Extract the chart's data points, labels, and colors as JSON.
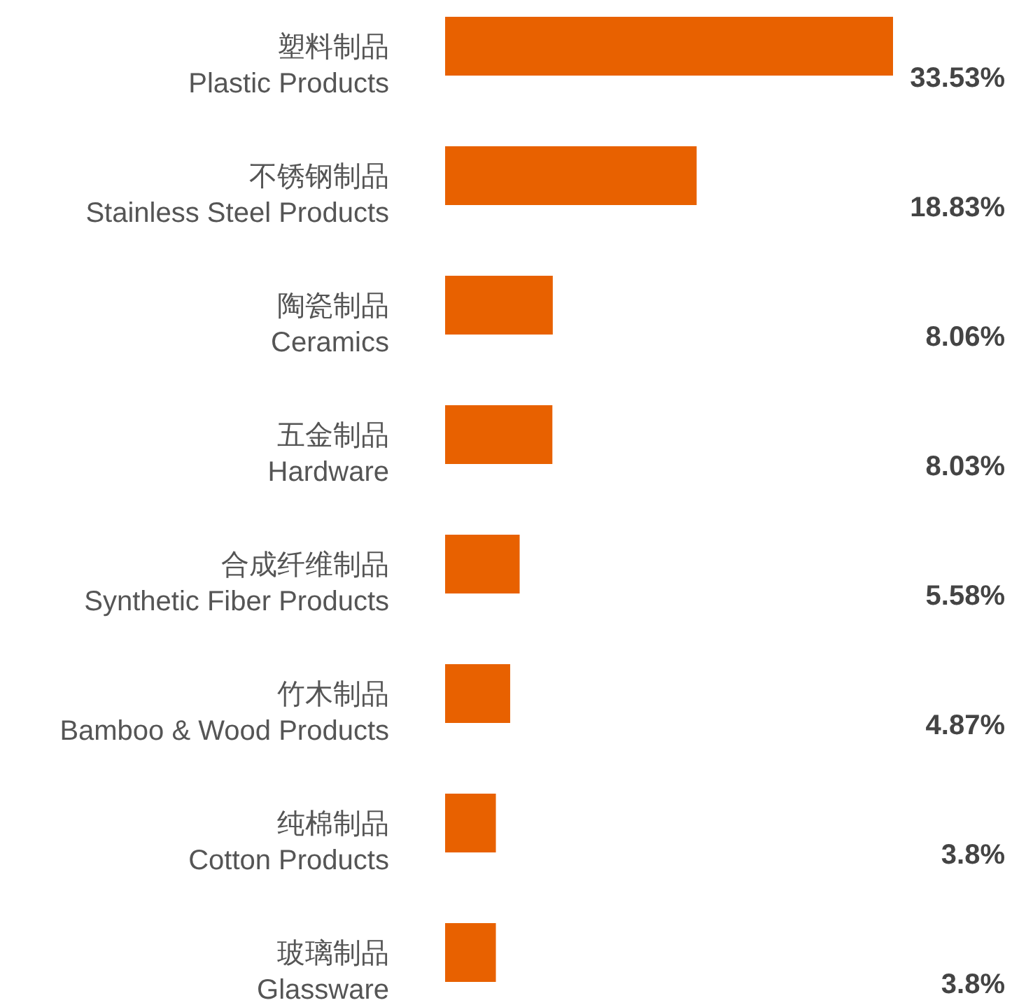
{
  "chart_data": {
    "type": "bar",
    "orientation": "horizontal",
    "categories": [
      "塑料制品\nPlastic Products",
      "不锈钢制品\nStainless Steel Products",
      "陶瓷制品\nCeramics",
      "五金制品\nHardware",
      "合成纤维制品\nSynthetic Fiber Products",
      "竹木制品\nBamboo & Wood Products",
      "纯棉制品\nCotton Products",
      "玻璃制品\nGlassware"
    ],
    "values": [
      33.53,
      18.83,
      8.06,
      8.03,
      5.58,
      4.87,
      3.8,
      3.8
    ],
    "value_labels": [
      "33.53%",
      "18.83%",
      "8.06%",
      "8.03%",
      "5.58%",
      "4.87%",
      "3.8%",
      "3.8%"
    ],
    "color": "#e86100"
  }
}
